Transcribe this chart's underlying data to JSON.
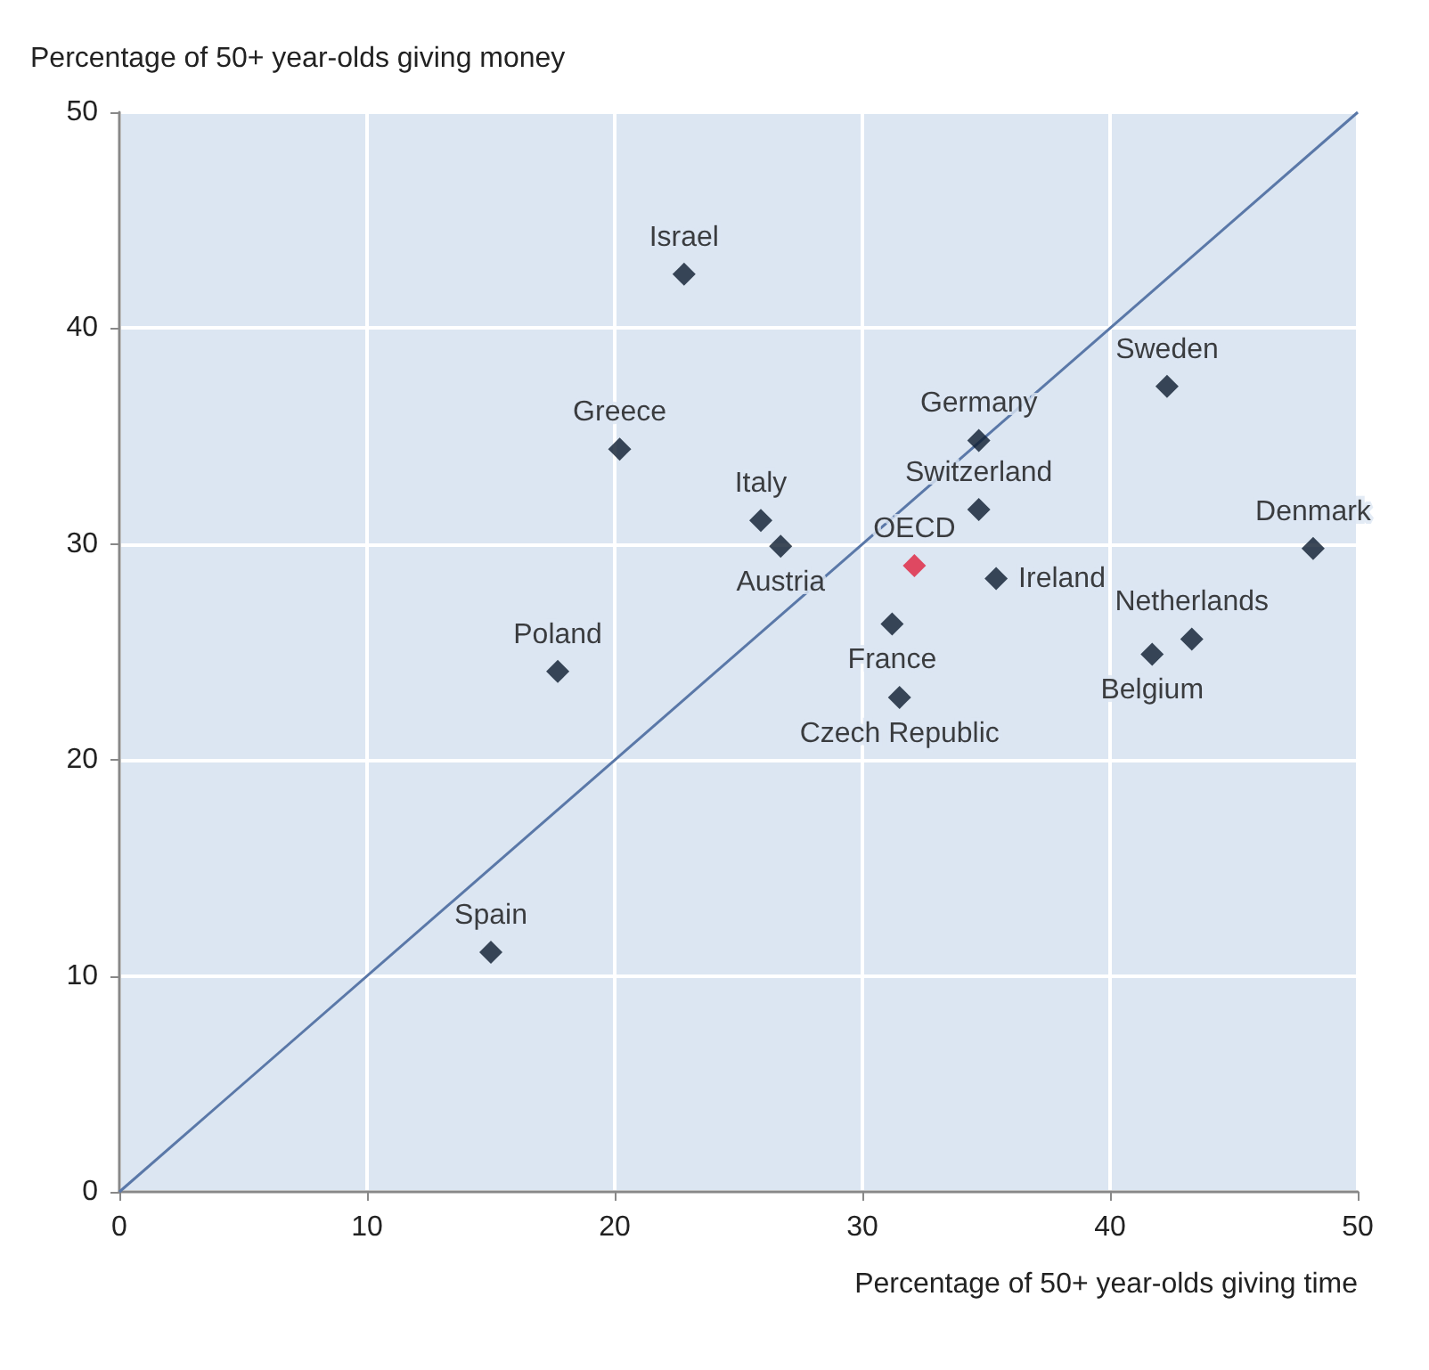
{
  "chart_data": {
    "type": "scatter",
    "xlabel": "Percentage of 50+ year-olds giving time",
    "ylabel": "Percentage of 50+ year-olds giving money",
    "xlim": [
      0,
      50
    ],
    "xticks": [
      0,
      10,
      20,
      30,
      40,
      50
    ],
    "ylim": [
      0,
      50
    ],
    "yticks": [
      0,
      10,
      20,
      30,
      40,
      50
    ],
    "grid": true,
    "marker": "diamond",
    "legend": false,
    "series": [
      {
        "name": "Israel",
        "color": "#0d1b2e",
        "x": [
          22.8
        ],
        "values": [
          42.5
        ]
      },
      {
        "name": "Greece",
        "color": "#0d1b2e",
        "x": [
          20.2
        ],
        "values": [
          34.4
        ]
      },
      {
        "name": "Italy",
        "color": "#0d1b2e",
        "x": [
          25.9
        ],
        "values": [
          31.1
        ]
      },
      {
        "name": "Austria",
        "color": "#0d1b2e",
        "x": [
          26.7
        ],
        "values": [
          29.9
        ]
      },
      {
        "name": "Poland",
        "color": "#0d1b2e",
        "x": [
          17.7
        ],
        "values": [
          24.1
        ]
      },
      {
        "name": "Spain",
        "color": "#0d1b2e",
        "x": [
          15.0
        ],
        "values": [
          11.1
        ]
      },
      {
        "name": "OECD",
        "color": "#e0203c",
        "x": [
          32.1
        ],
        "values": [
          29.0
        ]
      },
      {
        "name": "France",
        "color": "#0d1b2e",
        "x": [
          31.2
        ],
        "values": [
          26.3
        ]
      },
      {
        "name": "Czech Republic",
        "color": "#0d1b2e",
        "x": [
          31.5
        ],
        "values": [
          22.9
        ]
      },
      {
        "name": "Germany",
        "color": "#0d1b2e",
        "x": [
          34.7
        ],
        "values": [
          34.8
        ]
      },
      {
        "name": "Switzerland",
        "color": "#0d1b2e",
        "x": [
          34.7
        ],
        "values": [
          31.6
        ]
      },
      {
        "name": "Ireland",
        "color": "#0d1b2e",
        "x": [
          35.4
        ],
        "values": [
          28.4
        ]
      },
      {
        "name": "Sweden",
        "color": "#0d1b2e",
        "x": [
          42.3
        ],
        "values": [
          37.3
        ]
      },
      {
        "name": "Denmark",
        "color": "#0d1b2e",
        "x": [
          48.2
        ],
        "values": [
          29.8
        ]
      },
      {
        "name": "Netherlands",
        "color": "#0d1b2e",
        "x": [
          43.3
        ],
        "values": [
          25.6
        ]
      },
      {
        "name": "Belgium",
        "color": "#0d1b2e",
        "x": [
          41.7
        ],
        "values": [
          24.9
        ]
      },
      {
        "type": "line",
        "color": "#5a78a8",
        "marker": "none",
        "x": [
          0,
          50
        ],
        "values": [
          0,
          50
        ]
      }
    ]
  }
}
